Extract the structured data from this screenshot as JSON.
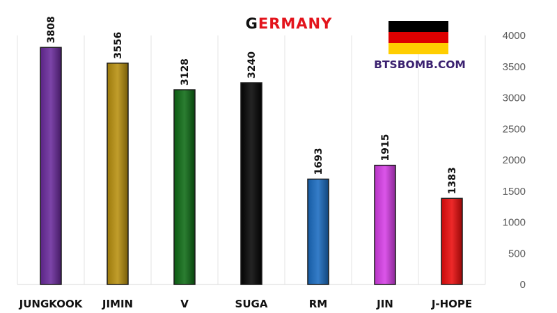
{
  "header": {
    "title_first": "G",
    "title_rest": "ERMANY",
    "watermark": "BTSBOMB.COM"
  },
  "flag": {
    "colors": [
      "#000000",
      "#dd0000",
      "#ffce00"
    ]
  },
  "chart_data": {
    "type": "bar",
    "title": "GERMANY",
    "categories": [
      "JUNGKOOK",
      "JIMIN",
      "V",
      "SUGA",
      "RM",
      "JIN",
      "J-HOPE"
    ],
    "values": [
      3808,
      3556,
      3128,
      3240,
      1693,
      1915,
      1383
    ],
    "bar_colors": [
      "#6a2a9c",
      "#b8900e",
      "#0e6b15",
      "#050505",
      "#1a6bc0",
      "#d63ee6",
      "#ea0c0c"
    ],
    "ylim": [
      0,
      4000
    ],
    "yticks": [
      0,
      500,
      1000,
      1500,
      2000,
      2500,
      3000,
      3500,
      4000
    ],
    "y_axis_side": "right",
    "grid": "vertical-category-separators",
    "legend": "none",
    "xlabel": "",
    "ylabel": ""
  }
}
